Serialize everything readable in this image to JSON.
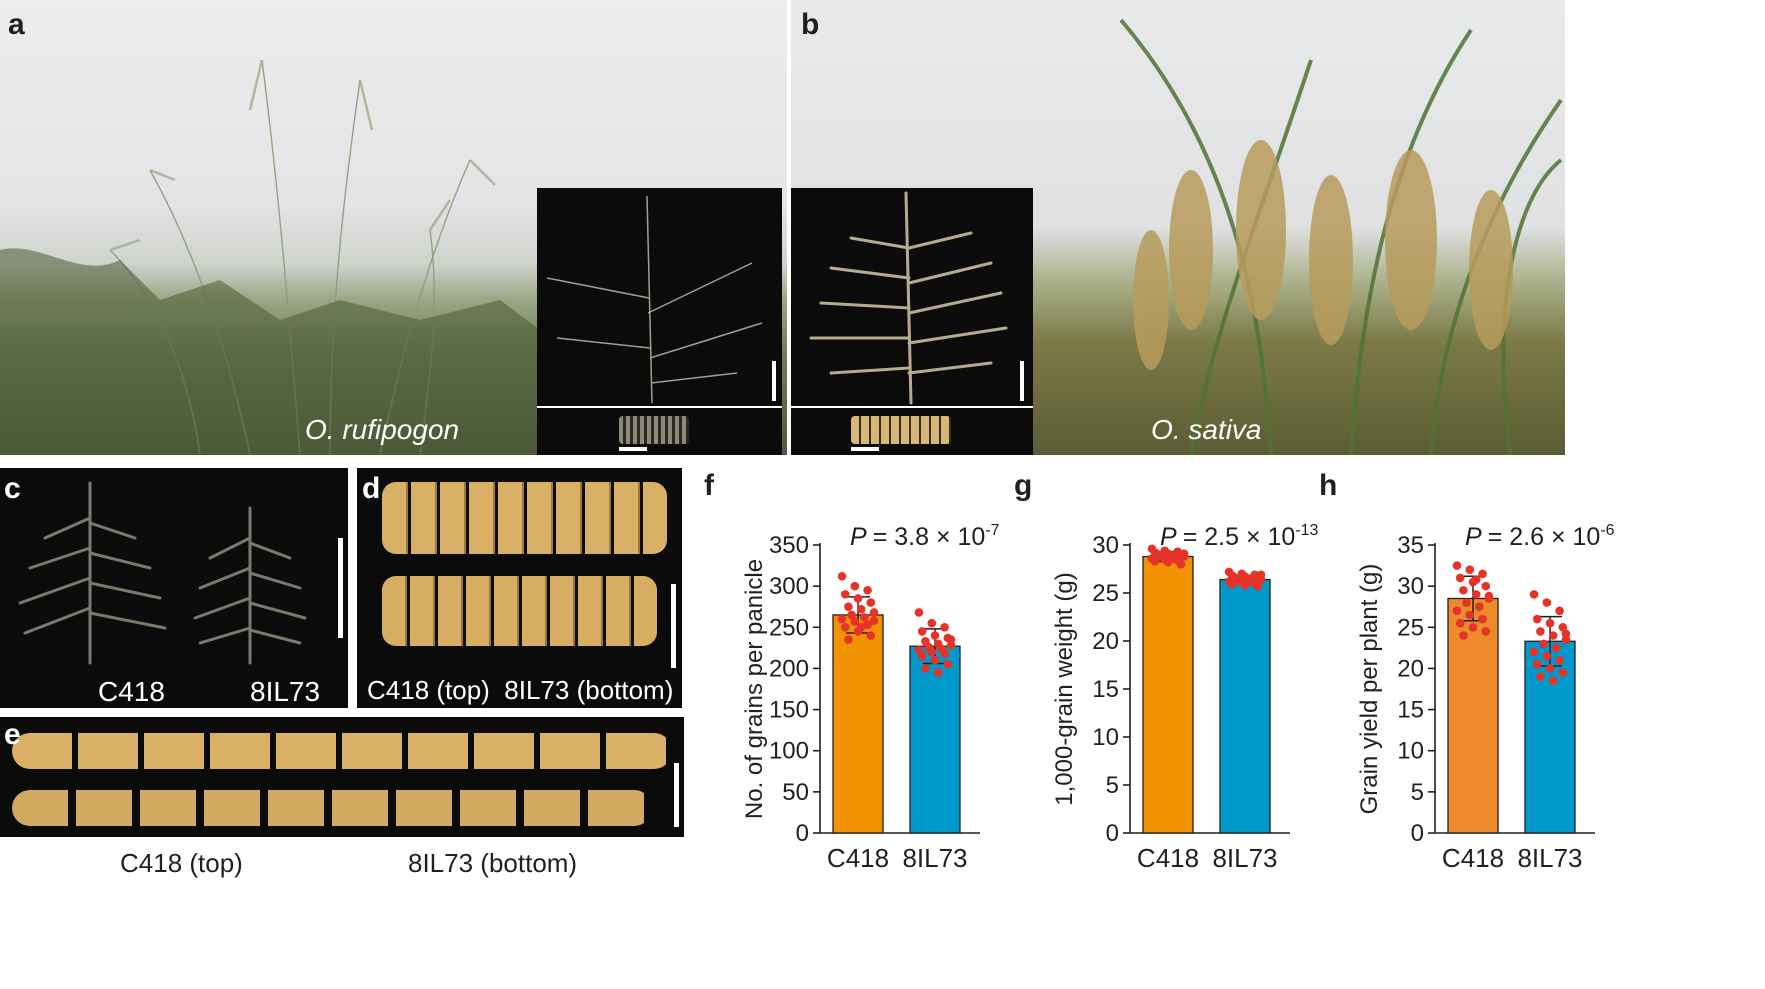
{
  "panels": {
    "a": {
      "letter": "a",
      "species": "O. rufipogon"
    },
    "b": {
      "letter": "b",
      "species": "O. sativa"
    },
    "c": {
      "letter": "c",
      "left_label": "C418",
      "right_label": "8IL73"
    },
    "d": {
      "letter": "d",
      "label": "C418 (top)  8IL73 (bottom)"
    },
    "e": {
      "letter": "e",
      "caption_left": "C418 (top)",
      "caption_right": "8IL73 (bottom)"
    }
  },
  "colors": {
    "c418": "#f39200",
    "c418_h": "#ec8a2c",
    "il73": "#0099cc",
    "dots": "#e5332a"
  },
  "chart_data": [
    {
      "panel": "f",
      "type": "bar",
      "categories": [
        "C418",
        "8IL73"
      ],
      "values": [
        265,
        227
      ],
      "errors": [
        22,
        21
      ],
      "ylabel": "No. of grains per panicle",
      "ylim": [
        0,
        350
      ],
      "yticks": [
        "0",
        "50",
        "100",
        "150",
        "200",
        "250",
        "300",
        "350"
      ],
      "p_text": "= 3.8 × 10",
      "p_exp": "-7",
      "points": [
        [
          312,
          300,
          295,
          290,
          285,
          280,
          275,
          272,
          268,
          265,
          262,
          260,
          257,
          253,
          250,
          245,
          240,
          235,
          250,
          258
        ],
        [
          268,
          255,
          250,
          245,
          240,
          237,
          233,
          230,
          228,
          226,
          224,
          222,
          220,
          218,
          215,
          210,
          205,
          200,
          195,
          235
        ]
      ]
    },
    {
      "panel": "g",
      "type": "bar",
      "categories": [
        "C418",
        "8IL73"
      ],
      "values": [
        28.8,
        26.4
      ],
      "errors": [
        0.5,
        0.4
      ],
      "ylabel": "1,000-grain weight (g)",
      "ylim": [
        0,
        30
      ],
      "yticks": [
        "0",
        "5",
        "10",
        "15",
        "20",
        "25",
        "30"
      ],
      "p_text": "= 2.5 × 10",
      "p_exp": "-13",
      "points": [
        [
          29.6,
          29.4,
          29.3,
          29.2,
          29.1,
          29.0,
          29.0,
          28.9,
          28.8,
          28.8,
          28.7,
          28.6,
          28.5,
          28.4,
          28.3,
          28.2,
          28.0,
          28.9,
          28.6,
          29.1
        ],
        [
          27.2,
          27.0,
          26.9,
          26.8,
          26.7,
          26.6,
          26.5,
          26.5,
          26.4,
          26.3,
          26.3,
          26.2,
          26.1,
          26.0,
          25.9,
          25.8,
          25.7,
          26.6,
          26.2,
          26.9
        ]
      ]
    },
    {
      "panel": "h",
      "type": "bar",
      "categories": [
        "C418",
        "8IL73"
      ],
      "values": [
        28.5,
        23.3
      ],
      "errors": [
        2.7,
        3.0
      ],
      "ylabel": "Grain yield per plant (g)",
      "ylim": [
        0,
        35
      ],
      "yticks": [
        "0",
        "5",
        "10",
        "15",
        "20",
        "25",
        "30",
        "35"
      ],
      "p_text": "= 2.6 × 10",
      "p_exp": "-6",
      "points": [
        [
          32.5,
          32.0,
          31.5,
          31.0,
          30.5,
          30.0,
          29.5,
          29.0,
          28.5,
          28.0,
          27.5,
          27.0,
          26.5,
          26.0,
          25.5,
          25.0,
          24.5,
          24.0,
          30.8,
          28.8
        ],
        [
          29.0,
          28.0,
          27.0,
          26.0,
          25.5,
          25.0,
          24.5,
          24.0,
          23.5,
          23.0,
          22.5,
          22.0,
          21.5,
          21.0,
          20.5,
          20.0,
          19.5,
          19.0,
          18.5,
          24.2
        ]
      ]
    }
  ]
}
